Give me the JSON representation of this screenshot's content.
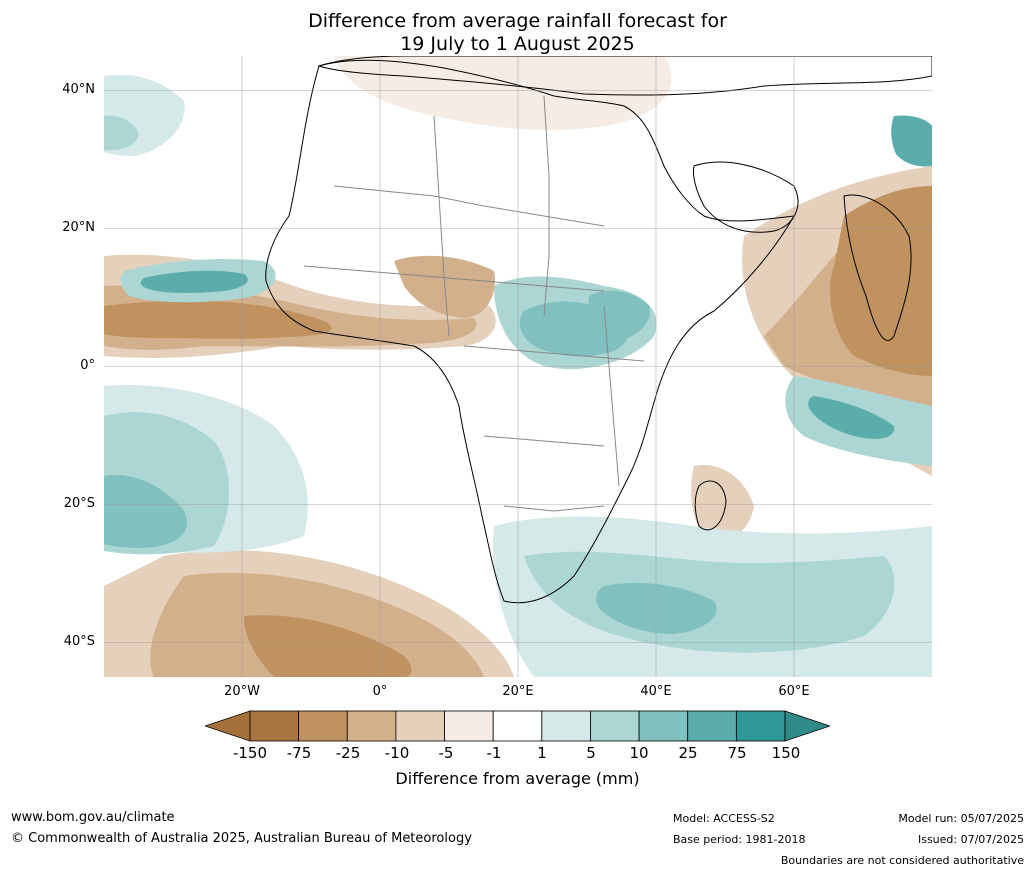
{
  "title_line1": "Difference from average rainfall forecast for",
  "title_line2": "19 July to 1 August 2025",
  "lat_labels": [
    "40°N",
    "20°N",
    "0°",
    "20°S",
    "40°S"
  ],
  "lon_labels": [
    "20°W",
    "0°",
    "20°E",
    "40°E",
    "60°E"
  ],
  "map_extent": {
    "lon_min": -40,
    "lon_max": 80,
    "lat_min": -45,
    "lat_max": 45
  },
  "legend": {
    "title": "Difference from average (mm)",
    "ticks": [
      "-150",
      "-75",
      "-25",
      "-10",
      "-5",
      "-1",
      "1",
      "5",
      "10",
      "25",
      "75",
      "150"
    ],
    "colors": [
      "#a6703a",
      "#a97440",
      "#c0925f",
      "#d3b08c",
      "#e5d0bc",
      "#f5ece5",
      "#ffffff",
      "#d4e9e8",
      "#acd6d4",
      "#80c1bf",
      "#5aadab",
      "#2f9896",
      "#2f8a88"
    ]
  },
  "footer": {
    "website": "www.bom.gov.au/climate",
    "copyright": "© Commonwealth of Australia 2025, Australian Bureau of Meteorology",
    "model": "Model: ACCESS-S2",
    "base_period": "Base period: 1981-2018",
    "model_run": "Model run: 05/07/2025",
    "issued": "Issued: 07/07/2025",
    "disclaimer": "Boundaries are not considered authoritative"
  }
}
